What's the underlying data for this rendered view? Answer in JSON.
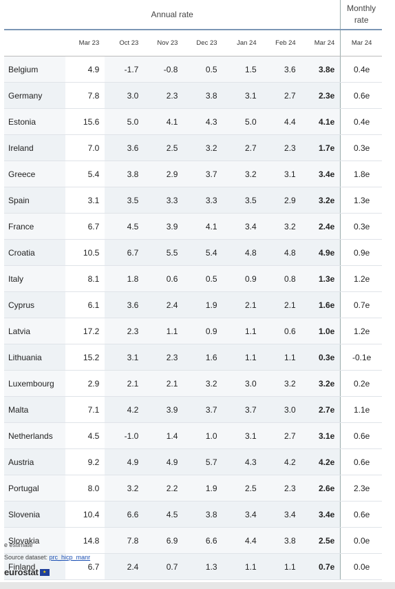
{
  "header": {
    "annual_rate": "Annual rate",
    "monthly_rate_line1": "Monthly",
    "monthly_rate_line2": "rate",
    "columns": [
      "Mar 23",
      "Oct 23",
      "Nov 23",
      "Dec 23",
      "Jan 24",
      "Feb 24",
      "Mar 24",
      "Mar 24"
    ]
  },
  "rows": [
    {
      "country": "Belgium",
      "values": [
        "4.9",
        "-1.7",
        "-0.8",
        "0.5",
        "1.5",
        "3.6",
        "3.8e",
        "0.4e"
      ]
    },
    {
      "country": "Germany",
      "values": [
        "7.8",
        "3.0",
        "2.3",
        "3.8",
        "3.1",
        "2.7",
        "2.3e",
        "0.6e"
      ]
    },
    {
      "country": "Estonia",
      "values": [
        "15.6",
        "5.0",
        "4.1",
        "4.3",
        "5.0",
        "4.4",
        "4.1e",
        "0.4e"
      ]
    },
    {
      "country": "Ireland",
      "values": [
        "7.0",
        "3.6",
        "2.5",
        "3.2",
        "2.7",
        "2.3",
        "1.7e",
        "0.3e"
      ]
    },
    {
      "country": "Greece",
      "values": [
        "5.4",
        "3.8",
        "2.9",
        "3.7",
        "3.2",
        "3.1",
        "3.4e",
        "1.8e"
      ]
    },
    {
      "country": "Spain",
      "values": [
        "3.1",
        "3.5",
        "3.3",
        "3.3",
        "3.5",
        "2.9",
        "3.2e",
        "1.3e"
      ]
    },
    {
      "country": "France",
      "values": [
        "6.7",
        "4.5",
        "3.9",
        "4.1",
        "3.4",
        "3.2",
        "2.4e",
        "0.3e"
      ]
    },
    {
      "country": "Croatia",
      "values": [
        "10.5",
        "6.7",
        "5.5",
        "5.4",
        "4.8",
        "4.8",
        "4.9e",
        "0.9e"
      ]
    },
    {
      "country": "Italy",
      "values": [
        "8.1",
        "1.8",
        "0.6",
        "0.5",
        "0.9",
        "0.8",
        "1.3e",
        "1.2e"
      ]
    },
    {
      "country": "Cyprus",
      "values": [
        "6.1",
        "3.6",
        "2.4",
        "1.9",
        "2.1",
        "2.1",
        "1.6e",
        "0.7e"
      ]
    },
    {
      "country": "Latvia",
      "values": [
        "17.2",
        "2.3",
        "1.1",
        "0.9",
        "1.1",
        "0.6",
        "1.0e",
        "1.2e"
      ]
    },
    {
      "country": "Lithuania",
      "values": [
        "15.2",
        "3.1",
        "2.3",
        "1.6",
        "1.1",
        "1.1",
        "0.3e",
        "-0.1e"
      ]
    },
    {
      "country": "Luxembourg",
      "values": [
        "2.9",
        "2.1",
        "2.1",
        "3.2",
        "3.0",
        "3.2",
        "3.2e",
        "0.2e"
      ]
    },
    {
      "country": "Malta",
      "values": [
        "7.1",
        "4.2",
        "3.9",
        "3.7",
        "3.7",
        "3.0",
        "2.7e",
        "1.1e"
      ]
    },
    {
      "country": "Netherlands",
      "values": [
        "4.5",
        "-1.0",
        "1.4",
        "1.0",
        "3.1",
        "2.7",
        "3.1e",
        "0.6e"
      ]
    },
    {
      "country": "Austria",
      "values": [
        "9.2",
        "4.9",
        "4.9",
        "5.7",
        "4.3",
        "4.2",
        "4.2e",
        "0.6e"
      ]
    },
    {
      "country": "Portugal",
      "values": [
        "8.0",
        "3.2",
        "2.2",
        "1.9",
        "2.5",
        "2.3",
        "2.6e",
        "2.3e"
      ]
    },
    {
      "country": "Slovenia",
      "values": [
        "10.4",
        "6.6",
        "4.5",
        "3.8",
        "3.4",
        "3.4",
        "3.4e",
        "0.6e"
      ]
    },
    {
      "country": "Slovakia",
      "values": [
        "14.8",
        "7.8",
        "6.9",
        "6.6",
        "4.4",
        "3.8",
        "2.5e",
        "0.0e"
      ]
    },
    {
      "country": "Finland",
      "values": [
        "6.7",
        "2.4",
        "0.7",
        "1.3",
        "1.1",
        "1.1",
        "0.7e",
        "0.0e"
      ]
    }
  ],
  "footer": {
    "footnote": "e estimate",
    "source_label": "Source dataset: ",
    "source_link": "prc_hicp_manr",
    "logo_text": "eurostat",
    "flag_icon": "eu-flag-icon"
  }
}
